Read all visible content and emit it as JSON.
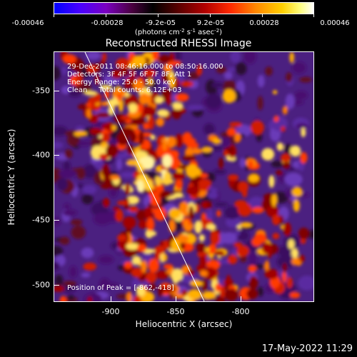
{
  "colorbar": {
    "tick_labels": [
      "-0.00046",
      "-0.00028",
      "-9.2e-05",
      "9.2e-05",
      "0.00028",
      "0.00046"
    ],
    "units_text": "(photons cm",
    "units_exp1": "-2",
    "units_mid": " s",
    "units_exp2": "-1",
    "units_mid2": " asec",
    "units_exp3": "-2",
    "units_end": ")"
  },
  "title": "Reconstructed RHESSI Image",
  "annotations": {
    "time_range": "29-Dec-2011 08:46:16.000 to 08:50:16.000",
    "detectors": "Detectors: 3F 4F 5F 6F 7F 8F, Att 1",
    "energy": "Energy Range: 25.0 - 50.0 keV",
    "clean": "Clean     Total counts: 6.12E+03",
    "peak": "Position of Peak = [-862,-418]"
  },
  "axes": {
    "x_label": "Heliocentric X (arcsec)",
    "y_label": "Heliocentric Y (arcsec)",
    "x_ticks": [
      "-900",
      "-850",
      "-800"
    ],
    "y_ticks": [
      "-350",
      "-400",
      "-450",
      "-500"
    ]
  },
  "footer": {
    "date": "17-May-2022 11:29"
  },
  "colors": {
    "background": "#000000",
    "frame": "#ffffff",
    "limb_line": "#ffffff"
  }
}
